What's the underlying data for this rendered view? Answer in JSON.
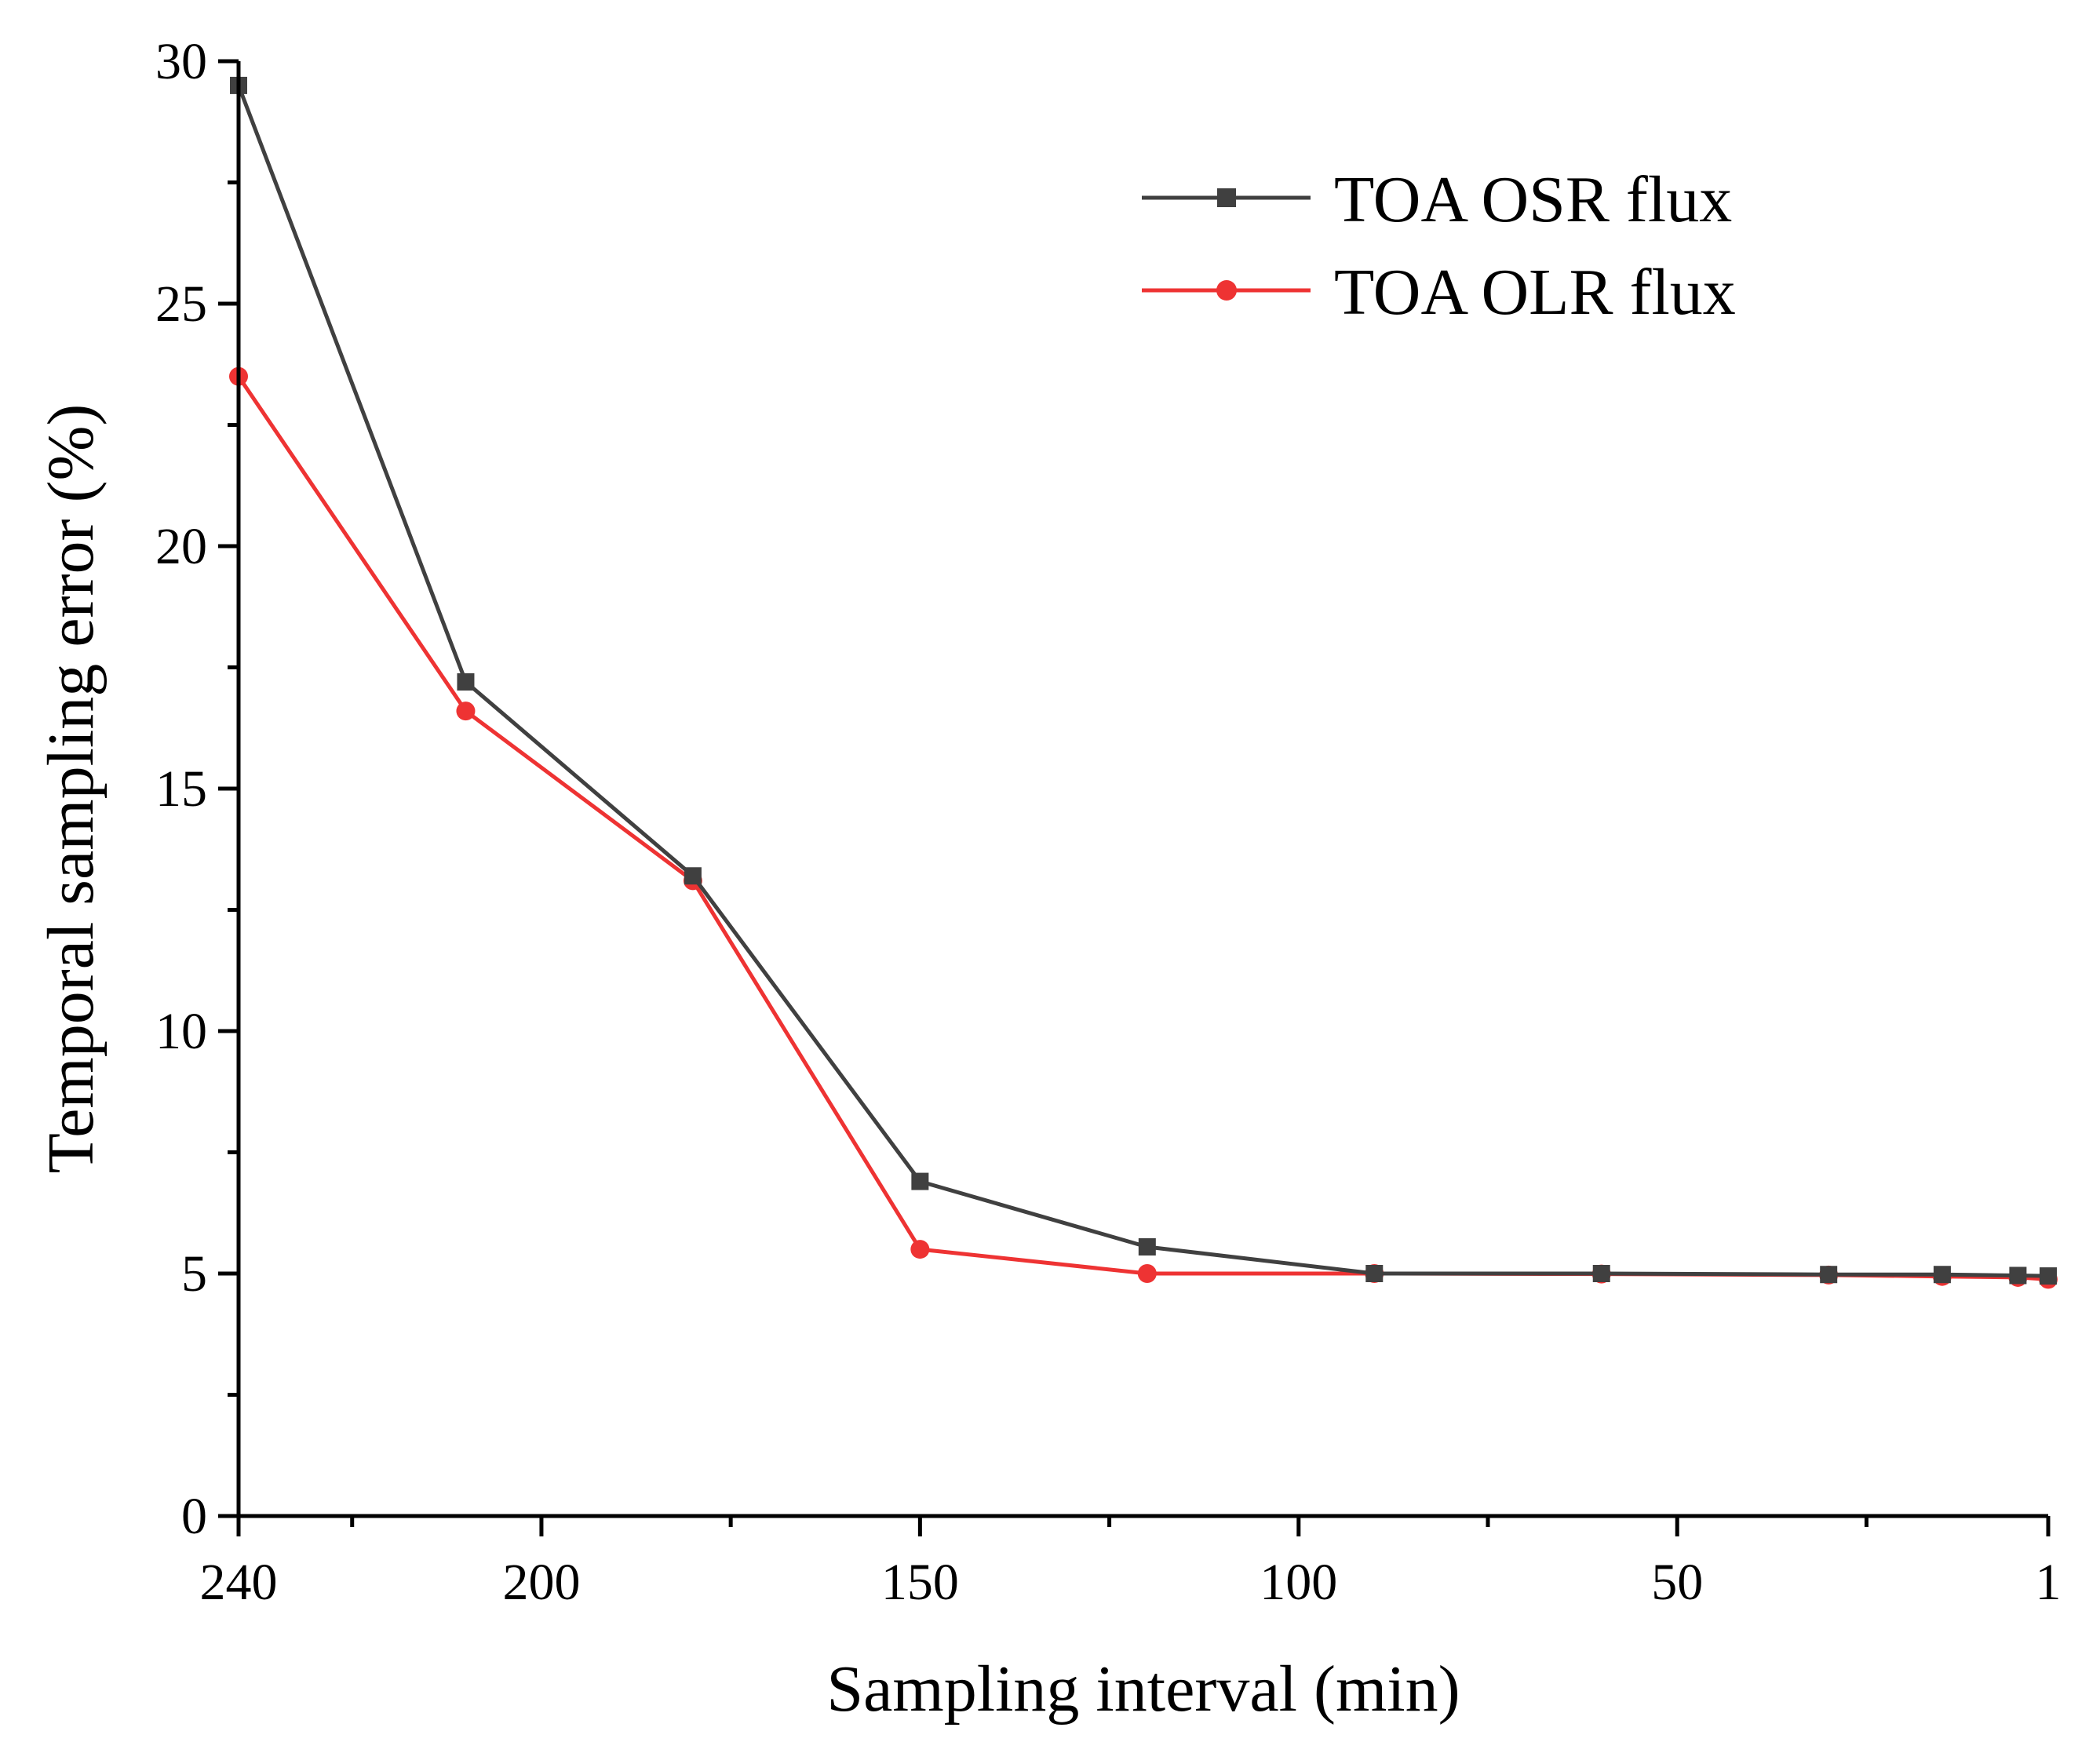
{
  "chart_data": {
    "type": "line",
    "title": "",
    "xlabel": "Sampling interval (min)",
    "ylabel": "Temporal sampling error (%)",
    "x_reversed": true,
    "xlim": [
      240,
      1
    ],
    "ylim": [
      0,
      30
    ],
    "x_ticks": [
      240,
      200,
      150,
      100,
      50,
      1
    ],
    "x_tick_labels": [
      "240",
      "200",
      "150",
      "100",
      "50",
      "1"
    ],
    "x_minor_ticks": [
      225,
      175,
      125,
      75,
      25
    ],
    "y_ticks": [
      0,
      5,
      10,
      15,
      20,
      25,
      30
    ],
    "y_tick_labels": [
      "0",
      "5",
      "10",
      "15",
      "20",
      "25",
      "30"
    ],
    "y_minor_ticks": [
      2.5,
      7.5,
      12.5,
      17.5,
      22.5,
      27.5
    ],
    "grid": false,
    "legend_position": "top-right",
    "x": [
      240,
      210,
      180,
      150,
      120,
      90,
      60,
      30,
      15,
      5,
      1
    ],
    "series": [
      {
        "name": "TOA OSR flux",
        "color": "#404040",
        "marker": "square",
        "values": [
          29.5,
          17.2,
          13.2,
          6.9,
          5.55,
          5.0,
          5.0,
          4.98,
          4.98,
          4.96,
          4.95
        ]
      },
      {
        "name": "TOA OLR flux",
        "color": "#ee3333",
        "marker": "circle",
        "values": [
          23.5,
          16.6,
          13.1,
          5.5,
          5.0,
          5.0,
          4.99,
          4.97,
          4.94,
          4.92,
          4.88
        ]
      }
    ]
  }
}
